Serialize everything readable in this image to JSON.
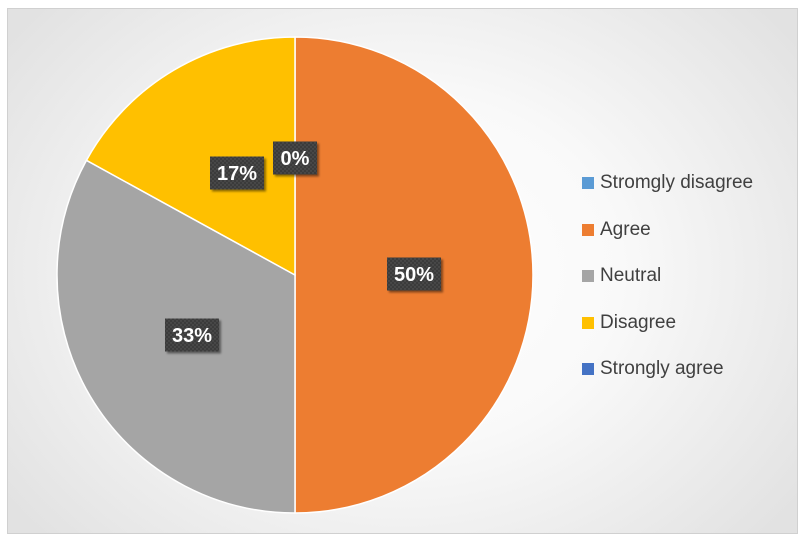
{
  "chart_data": {
    "type": "pie",
    "title": "",
    "slices": [
      {
        "label": "Stromgly disagree",
        "value": 0,
        "display": "0%",
        "color": "#5B9BD5"
      },
      {
        "label": "Agree",
        "value": 50,
        "display": "50%",
        "color": "#ED7D31"
      },
      {
        "label": "Neutral",
        "value": 33,
        "display": "33%",
        "color": "#A5A5A5"
      },
      {
        "label": "Disagree",
        "value": 17,
        "display": "17%",
        "color": "#FFC000"
      },
      {
        "label": "Strongly agree",
        "value": 0,
        "display": "0%",
        "color": "#4472C4"
      }
    ],
    "start_angle_deg": 0,
    "direction": "clockwise",
    "legend_position": "right",
    "data_label_style": "dark box"
  }
}
